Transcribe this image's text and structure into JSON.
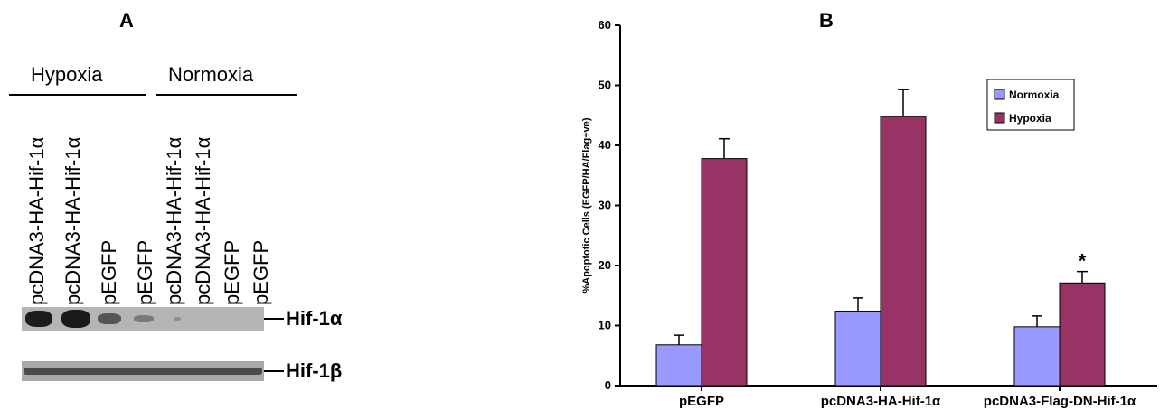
{
  "panel_a": {
    "letter": "A",
    "groups": [
      "Hypoxia",
      "Normoxia"
    ],
    "lanes": [
      "pcDNA3-HA-Hif-1α",
      "pcDNA3-HA-Hif-1α",
      "pEGFP",
      "pEGFP",
      "pcDNA3-HA-Hif-1α",
      "pcDNA3-HA-Hif-1α",
      "pEGFP",
      "pEGFP"
    ],
    "blots": [
      "Hif-1α",
      "Hif-1β"
    ]
  },
  "panel_b": {
    "letter": "B"
  },
  "chart_data": {
    "type": "bar",
    "categories": [
      "pEGFP",
      "pcDNA3-HA-Hif-1α",
      "pcDNA3-Flag-DN-Hif-1α"
    ],
    "series": [
      {
        "name": "Normoxia",
        "values": [
          6.8,
          12.4,
          9.8
        ],
        "errors": [
          1.6,
          2.2,
          1.8
        ],
        "color": "#9999ff"
      },
      {
        "name": "Hypoxia",
        "values": [
          37.8,
          44.8,
          17.1
        ],
        "errors": [
          3.3,
          4.5,
          1.9
        ],
        "color": "#993366"
      }
    ],
    "ylabel": "%Apoptotic Cells (EGFP/HA/Flag+ve)",
    "xlabel": "",
    "ylim": [
      0,
      60
    ],
    "yticks": [
      0,
      10,
      20,
      30,
      40,
      50,
      60
    ],
    "annotations": [
      {
        "category": "pcDNA3-Flag-DN-Hif-1α",
        "series": "Hypoxia",
        "text": "*"
      }
    ],
    "legend": "top-right",
    "grid": false
  }
}
